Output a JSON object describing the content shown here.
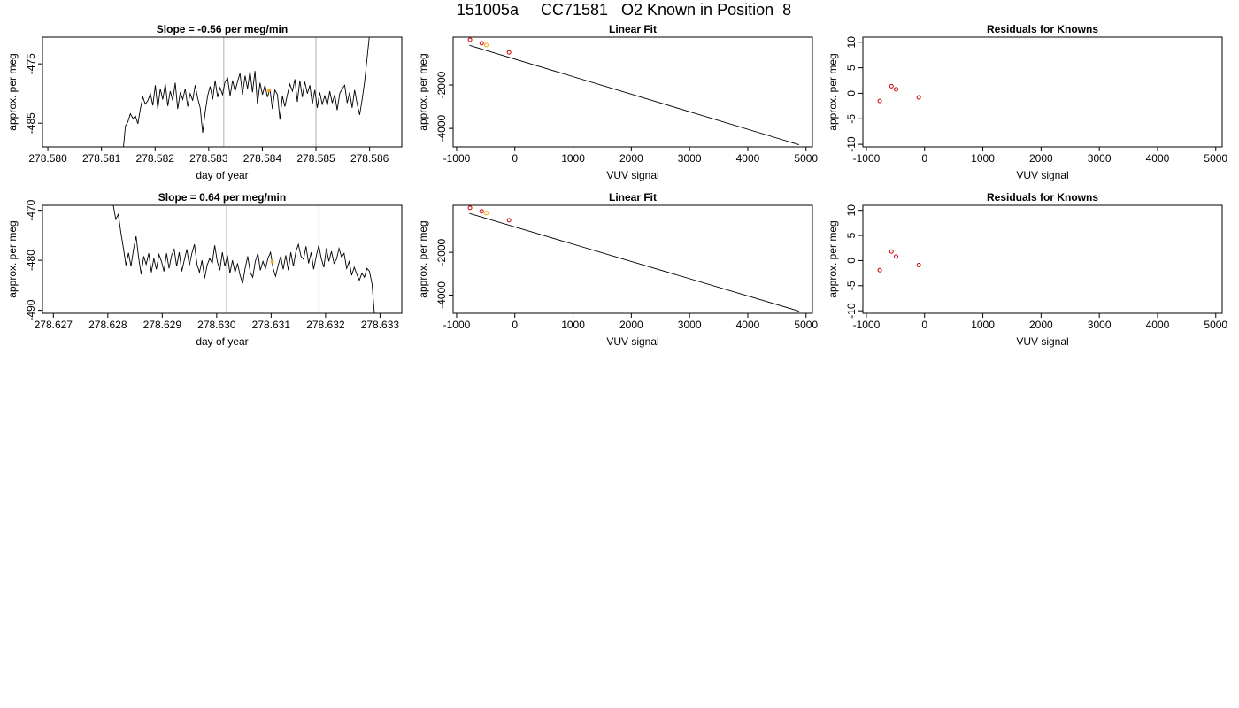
{
  "page_title": "151005a     CC71581   O2 Known in Position  8",
  "colors": {
    "trace": "#000000",
    "marker_orange": "#FFA500",
    "marker_red": "#CC0000",
    "vline": "#BEBEBE",
    "fit_line": "#000000"
  },
  "chart_data": [
    {
      "type": "line",
      "title": "Slope =  -0.56  per meg/min",
      "xlabel": "day of year",
      "ylabel": "approx. per meg",
      "xlim": [
        278.5799,
        278.5866
      ],
      "ylim": [
        -489.0,
        -470.5
      ],
      "x_ticks": [
        "278.580",
        "278.581",
        "278.582",
        "278.583",
        "278.584",
        "278.585",
        "278.586"
      ],
      "y_ticks": [
        "-475",
        "-485"
      ],
      "vlines": [
        278.58328,
        278.585
      ],
      "x_range": [
        278.5814,
        278.586
      ],
      "y_points": [
        -490,
        -485.5,
        -484.8,
        -483.4,
        -484.2,
        -483.8,
        -485.1,
        -482.6,
        -480.6,
        -481.8,
        -481.2,
        -480.0,
        -482.0,
        -478.6,
        -482.6,
        -479.2,
        -481.0,
        -478.4,
        -482.1,
        -479.6,
        -481.2,
        -478.2,
        -482.6,
        -479.8,
        -481.0,
        -479.2,
        -482.2,
        -480.0,
        -481.2,
        -478.6,
        -480.8,
        -482.4,
        -486.6,
        -483.2,
        -480.4,
        -478.8,
        -481.0,
        -477.8,
        -480.6,
        -479.0,
        -480.2,
        -478.0,
        -477.4,
        -480.4,
        -477.8,
        -479.6,
        -478.0,
        -476.6,
        -480.2,
        -477.0,
        -479.2,
        -476.2,
        -479.8,
        -476.2,
        -481.8,
        -478.2,
        -480.2,
        -478.6,
        -480.6,
        -479.2,
        -482.6,
        -479.4,
        -480.2,
        -484.4,
        -480.4,
        -482.2,
        -480.2,
        -478.4,
        -479.6,
        -477.6,
        -481.4,
        -477.8,
        -480.6,
        -478.0,
        -480.0,
        -478.6,
        -481.8,
        -479.4,
        -482.4,
        -479.8,
        -481.8,
        -480.4,
        -482.0,
        -479.6,
        -481.6,
        -480.2,
        -482.8,
        -480.0,
        -479.2,
        -478.6,
        -481.6,
        -479.8,
        -482.4,
        -479.4,
        -481.8,
        -483.6,
        -481.0,
        -478.0,
        -474.0,
        -470.0
      ],
      "markers": [
        {
          "x": 278.58412,
          "y": -479.5,
          "color": "#FFA500"
        }
      ]
    },
    {
      "type": "line",
      "title": "Linear Fit",
      "xlabel": "VUV signal",
      "ylabel": "approx. per meg",
      "xlim": [
        -1060,
        5110
      ],
      "ylim": [
        -4850,
        200
      ],
      "x_ticks": [
        -1000,
        0,
        1000,
        2000,
        3000,
        4000,
        5000
      ],
      "y_ticks": [
        -2000,
        -4000
      ],
      "line": {
        "x": [
          -780,
          4880
        ],
        "y": [
          -180,
          -4750
        ]
      },
      "points": [
        {
          "x": -770,
          "y": 80,
          "color": "#CC0000"
        },
        {
          "x": -570,
          "y": -80,
          "color": "#CC0000"
        },
        {
          "x": -490,
          "y": -160,
          "color": "#FFA500"
        },
        {
          "x": -100,
          "y": -500,
          "color": "#CC0000"
        }
      ]
    },
    {
      "type": "scatter",
      "title": "Residuals for Knowns",
      "xlabel": "VUV signal",
      "ylabel": "approx. per meg",
      "xlim": [
        -1060,
        5110
      ],
      "ylim": [
        -10.5,
        11
      ],
      "x_ticks": [
        -1000,
        0,
        1000,
        2000,
        3000,
        4000,
        5000
      ],
      "y_ticks": [
        10,
        5,
        0,
        -5,
        -10
      ],
      "points": [
        {
          "x": -770,
          "y": -1.5,
          "color": "#CC0000"
        },
        {
          "x": -570,
          "y": 1.4,
          "color": "#CC0000"
        },
        {
          "x": -490,
          "y": 0.8,
          "color": "#CC0000"
        },
        {
          "x": -100,
          "y": -0.8,
          "color": "#CC0000"
        }
      ]
    },
    {
      "type": "line",
      "title": "Slope =  0.64  per meg/min",
      "xlabel": "day of year",
      "ylabel": "approx. per meg",
      "xlim": [
        278.6268,
        278.6334
      ],
      "ylim": [
        -490.6,
        -469.0
      ],
      "x_ticks": [
        "278.627",
        "278.628",
        "278.629",
        "278.630",
        "278.631",
        "278.632",
        "278.633"
      ],
      "y_ticks": [
        "-470",
        "-480",
        "-490"
      ],
      "vlines": [
        278.63018,
        278.63188
      ],
      "x_range": [
        278.6281,
        278.6329
      ],
      "y_points": [
        -469.0,
        -471.8,
        -470.8,
        -474.5,
        -477.5,
        -481.0,
        -478.5,
        -481.2,
        -477.8,
        -475.2,
        -479.4,
        -482.8,
        -479.2,
        -480.8,
        -478.6,
        -482.4,
        -479.6,
        -481.8,
        -478.8,
        -480.2,
        -482.2,
        -478.6,
        -481.6,
        -479.0,
        -477.8,
        -481.2,
        -478.4,
        -482.2,
        -480.0,
        -477.8,
        -481.0,
        -478.6,
        -476.8,
        -480.8,
        -482.4,
        -480.0,
        -483.6,
        -481.0,
        -479.6,
        -480.6,
        -477.0,
        -480.2,
        -482.0,
        -478.4,
        -481.2,
        -479.0,
        -482.6,
        -480.0,
        -482.4,
        -480.6,
        -483.0,
        -484.6,
        -481.6,
        -479.2,
        -482.4,
        -483.4,
        -480.2,
        -478.6,
        -482.0,
        -480.2,
        -481.6,
        -479.6,
        -478.4,
        -481.6,
        -483.2,
        -481.0,
        -479.2,
        -481.8,
        -479.0,
        -482.0,
        -478.4,
        -481.2,
        -478.2,
        -476.8,
        -479.2,
        -479.8,
        -477.2,
        -480.6,
        -478.4,
        -481.8,
        -479.2,
        -477.0,
        -479.6,
        -481.4,
        -477.6,
        -480.2,
        -478.2,
        -480.6,
        -479.8,
        -477.6,
        -479.4,
        -478.6,
        -481.6,
        -480.2,
        -483.0,
        -481.4,
        -482.8,
        -484.0,
        -482.6,
        -483.4,
        -481.6,
        -482.2,
        -484.8,
        -491.0
      ],
      "markers": [
        {
          "x": 278.63102,
          "y": -480.3,
          "color": "#FFA500"
        }
      ]
    },
    {
      "type": "line",
      "title": "Linear Fit",
      "xlabel": "VUV signal",
      "ylabel": "approx. per meg",
      "xlim": [
        -1060,
        5110
      ],
      "ylim": [
        -4850,
        200
      ],
      "x_ticks": [
        -1000,
        0,
        1000,
        2000,
        3000,
        4000,
        5000
      ],
      "y_ticks": [
        -2000,
        -4000
      ],
      "line": {
        "x": [
          -780,
          4880
        ],
        "y": [
          -180,
          -4750
        ]
      },
      "points": [
        {
          "x": -770,
          "y": 80,
          "color": "#CC0000"
        },
        {
          "x": -570,
          "y": -80,
          "color": "#CC0000"
        },
        {
          "x": -490,
          "y": -160,
          "color": "#FFA500"
        },
        {
          "x": -100,
          "y": -500,
          "color": "#CC0000"
        }
      ]
    },
    {
      "type": "scatter",
      "title": "Residuals for Knowns",
      "xlabel": "VUV signal",
      "ylabel": "approx. per meg",
      "xlim": [
        -1060,
        5110
      ],
      "ylim": [
        -10.5,
        11
      ],
      "x_ticks": [
        -1000,
        0,
        1000,
        2000,
        3000,
        4000,
        5000
      ],
      "y_ticks": [
        10,
        5,
        0,
        -5,
        -10
      ],
      "points": [
        {
          "x": -770,
          "y": -1.9,
          "color": "#CC0000"
        },
        {
          "x": -570,
          "y": 1.8,
          "color": "#CC0000"
        },
        {
          "x": -490,
          "y": 0.8,
          "color": "#CC0000"
        },
        {
          "x": -100,
          "y": -0.9,
          "color": "#CC0000"
        }
      ]
    }
  ]
}
